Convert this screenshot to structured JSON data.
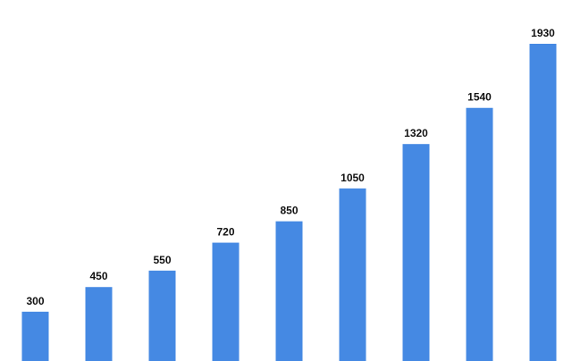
{
  "chart_data": {
    "type": "bar",
    "categories": [
      null,
      null,
      null,
      null,
      null,
      null,
      null,
      null,
      null
    ],
    "values": [
      300,
      450,
      550,
      720,
      850,
      1050,
      1320,
      1540,
      1930
    ],
    "color": "#4589e3"
  }
}
